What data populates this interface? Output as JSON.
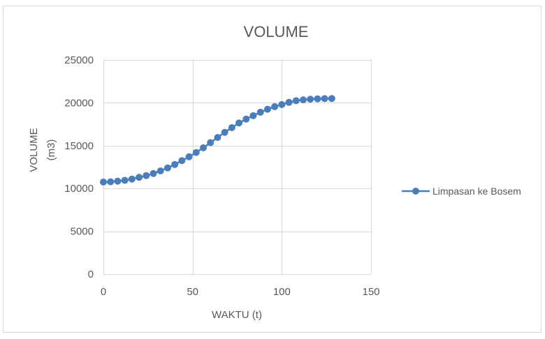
{
  "chart_data": {
    "type": "scatter",
    "title": "VOLUME",
    "xlabel": "WAKTU (t)",
    "ylabel_lines": [
      "VOLUME",
      "(m3)"
    ],
    "xlim": [
      0,
      150
    ],
    "ylim": [
      0,
      25000
    ],
    "x_ticks": [
      0,
      50,
      100,
      150
    ],
    "y_ticks": [
      0,
      5000,
      10000,
      15000,
      20000,
      25000
    ],
    "grid": true,
    "legend_position": "right",
    "series": [
      {
        "name": "Limpasan ke Bosem",
        "color": "#4a7ebb",
        "marker": "circle",
        "line": true,
        "x": [
          0,
          4,
          8,
          12,
          16,
          20,
          24,
          28,
          32,
          36,
          40,
          44,
          48,
          52,
          56,
          60,
          64,
          68,
          72,
          76,
          80,
          84,
          88,
          92,
          96,
          100,
          104,
          108,
          112,
          116,
          120,
          124,
          128
        ],
        "y": [
          10750,
          10780,
          10850,
          10950,
          11100,
          11300,
          11500,
          11750,
          12050,
          12400,
          12800,
          13250,
          13700,
          14200,
          14750,
          15350,
          15950,
          16550,
          17100,
          17650,
          18100,
          18500,
          18900,
          19250,
          19550,
          19800,
          20050,
          20250,
          20350,
          20420,
          20460,
          20490,
          20500
        ]
      }
    ]
  }
}
